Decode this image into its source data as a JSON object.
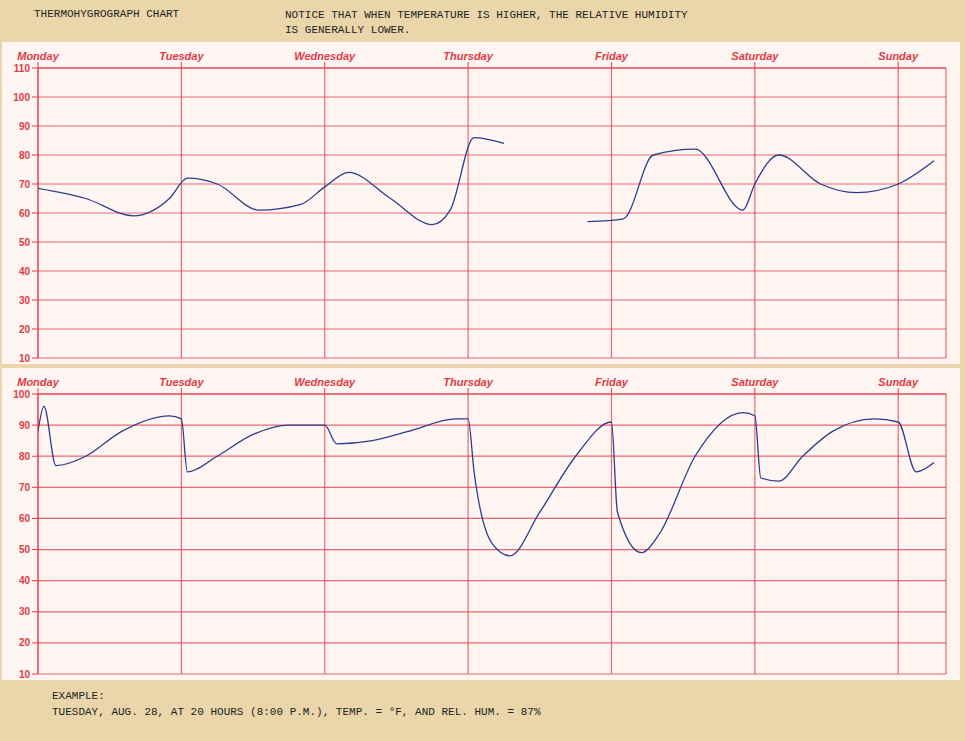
{
  "header": {
    "title": "THERMOHYGROGRAPH CHART",
    "subtitle": "NOTICE THAT WHEN TEMPERATURE IS HIGHER, THE RELATIVE HUMIDITY IS GENERALLY LOWER."
  },
  "footer": [
    "EXAMPLE:",
    "TUESDAY, AUG. 28, AT 20 HOURS (8:00 P.M.), TEMP. = °F, AND REL. HUM. = 87%"
  ],
  "chart_data": [
    {
      "type": "line",
      "color": "#2b3d8f",
      "x": [
        0,
        8,
        16,
        22,
        25,
        30,
        37,
        44,
        48,
        52,
        59,
        66,
        69,
        73,
        78,
        85,
        92,
        98,
        103,
        110,
        118,
        120,
        124,
        131,
        137,
        144,
        150
      ],
      "values": [
        68.5,
        65,
        59,
        65,
        72,
        70,
        61,
        63,
        69,
        74,
        65,
        56,
        61,
        86,
        84,
        null,
        57,
        58,
        80,
        82,
        61,
        70,
        80,
        70,
        67,
        70,
        78
      ],
      "xlim": [
        0,
        152
      ],
      "xticks": [
        {
          "value": 0,
          "label": "Monday"
        },
        {
          "value": 24,
          "label": "Tuesday"
        },
        {
          "value": 48,
          "label": "Wednesday"
        },
        {
          "value": 72,
          "label": "Thursday"
        },
        {
          "value": 96,
          "label": "Friday"
        },
        {
          "value": 120,
          "label": "Saturday"
        },
        {
          "value": 144,
          "label": "Sunday"
        }
      ],
      "ylim": [
        10,
        110
      ],
      "yticks": [
        10,
        20,
        30,
        40,
        50,
        60,
        70,
        80,
        90,
        100,
        110
      ],
      "grid": true
    },
    {
      "type": "line",
      "color": "#2b3d8f",
      "x": [
        0,
        1,
        3,
        8,
        14,
        22,
        24,
        25,
        30,
        36,
        42,
        48,
        50,
        56,
        62,
        70,
        72,
        73,
        76,
        79,
        84,
        90,
        96,
        97,
        101,
        104,
        110,
        118,
        120,
        121,
        124,
        128,
        133,
        140,
        144,
        147,
        150
      ],
      "values": [
        88,
        96,
        77,
        80,
        88,
        93,
        92,
        75,
        80,
        87,
        90,
        90,
        84,
        85,
        88,
        92,
        92,
        75,
        52,
        48,
        62,
        80,
        91,
        62,
        49,
        55,
        80,
        94,
        93,
        73,
        72,
        80,
        88,
        92,
        91,
        75,
        78
      ],
      "xlim": [
        0,
        152
      ],
      "xticks": [
        {
          "value": 0,
          "label": "Monday"
        },
        {
          "value": 24,
          "label": "Tuesday"
        },
        {
          "value": 48,
          "label": "Wednesday"
        },
        {
          "value": 72,
          "label": "Thursday"
        },
        {
          "value": 96,
          "label": "Friday"
        },
        {
          "value": 120,
          "label": "Saturday"
        },
        {
          "value": 144,
          "label": "Sunday"
        }
      ],
      "ylim": [
        10,
        100
      ],
      "yticks": [
        10,
        20,
        30,
        40,
        50,
        60,
        70,
        80,
        90,
        100
      ],
      "grid": true
    }
  ]
}
